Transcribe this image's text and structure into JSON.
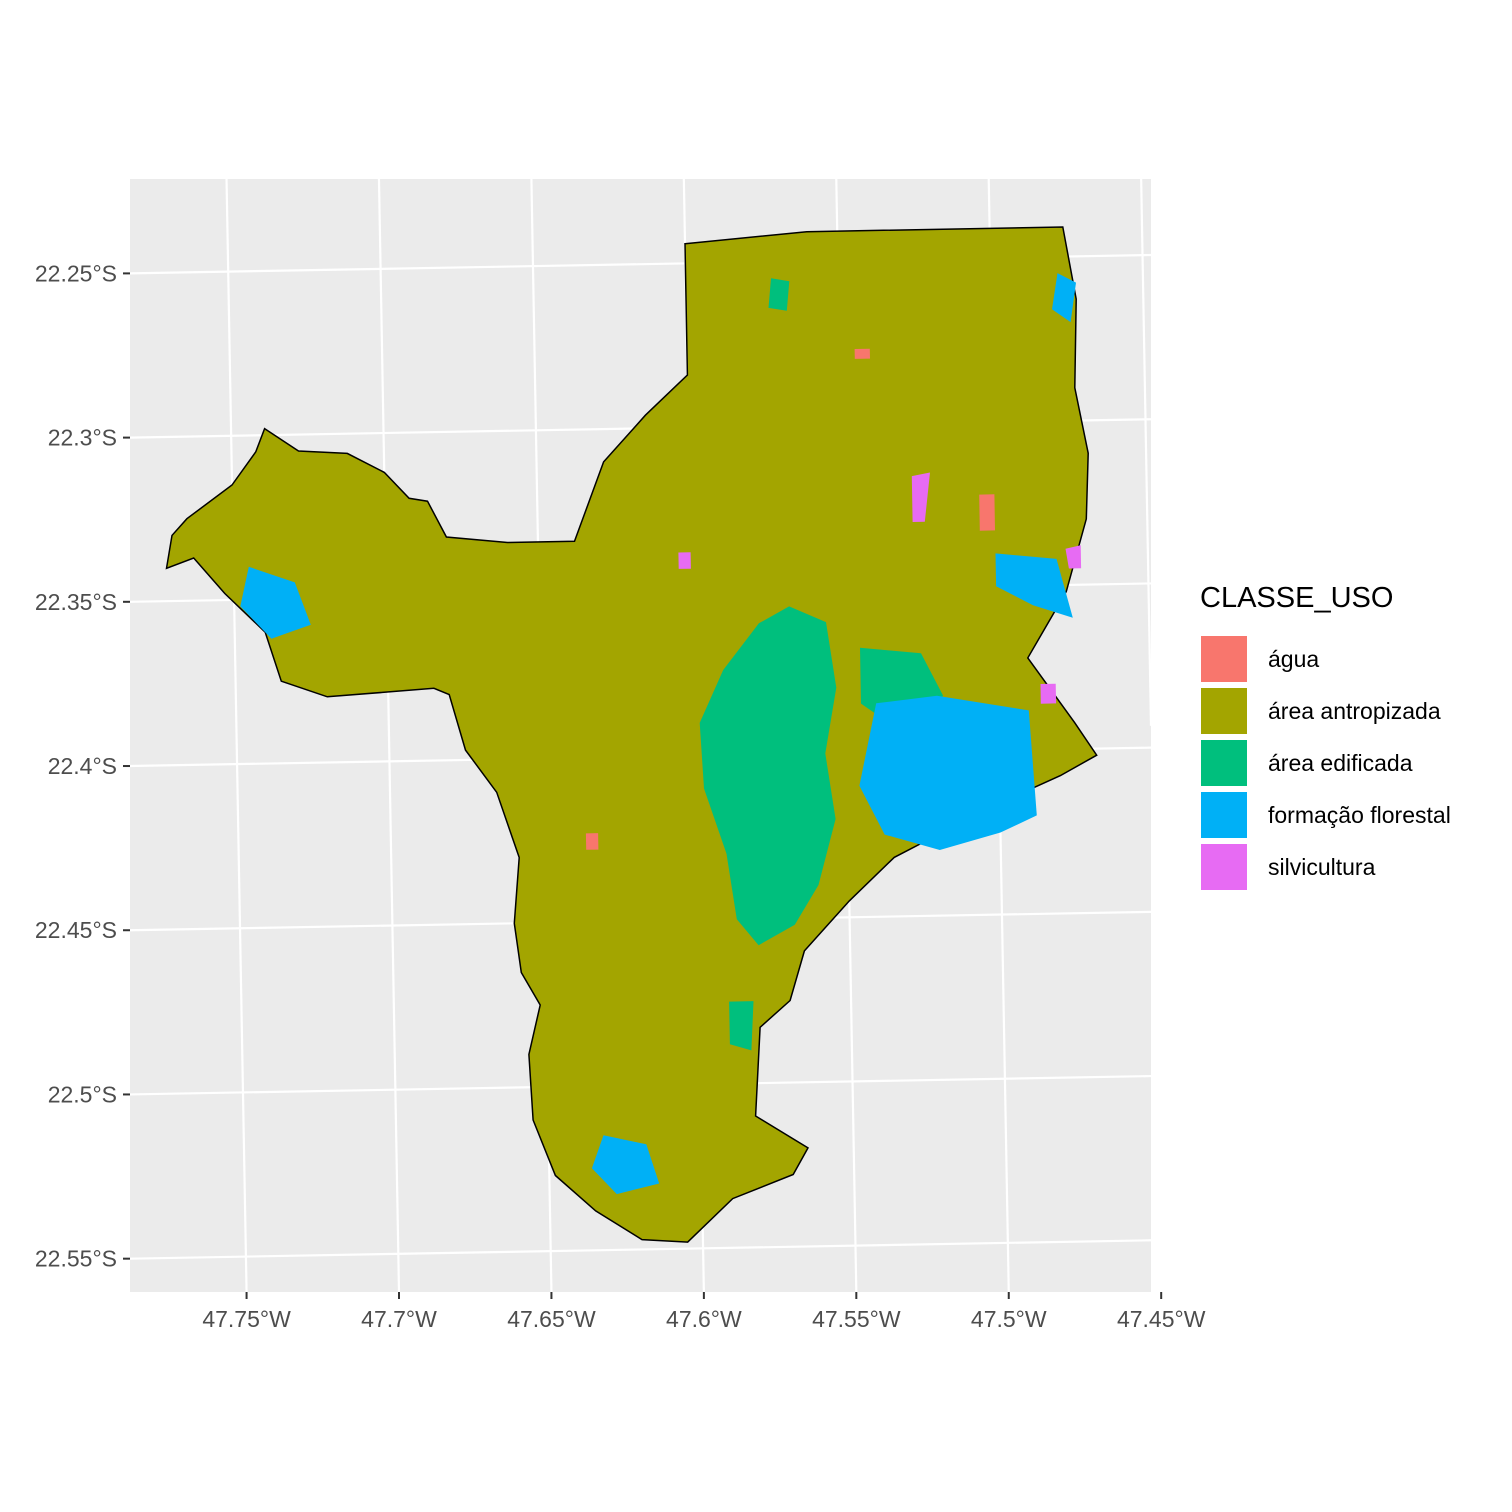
{
  "chart_data": {
    "type": "map",
    "title": "",
    "xlabel": "",
    "ylabel": "",
    "x_ticks": [
      "47.75°W",
      "47.7°W",
      "47.65°W",
      "47.6°W",
      "47.55°W",
      "47.5°W",
      "47.45°W"
    ],
    "y_ticks": [
      "22.25°S",
      "22.3°S",
      "22.35°S",
      "22.4°S",
      "22.45°S",
      "22.5°S",
      "22.55°S"
    ],
    "xlim": [
      -47.785,
      -47.45
    ],
    "ylim": [
      -22.563,
      -22.224
    ],
    "panel_background": "#ebebeb",
    "grid": true,
    "legend": {
      "title": "CLASSE_USO",
      "position": "right",
      "items": [
        {
          "label": "água",
          "color": "#F8766D"
        },
        {
          "label": "área antropizada",
          "color": "#A3A500"
        },
        {
          "label": "área edificada",
          "color": "#00BF7D"
        },
        {
          "label": "formação florestal",
          "color": "#00B0F6"
        },
        {
          "label": "silvicultura",
          "color": "#E76BF3"
        }
      ]
    },
    "regions": [
      {
        "class": "área antropizada",
        "boundary": [
          [
            -47.6,
            -22.244
          ],
          [
            -47.56,
            -22.241
          ],
          [
            -47.476,
            -22.241
          ],
          [
            -47.472,
            -22.263
          ],
          [
            -47.473,
            -22.29
          ],
          [
            -47.469,
            -22.31
          ],
          [
            -47.47,
            -22.33
          ],
          [
            -47.477,
            -22.352
          ],
          [
            -47.49,
            -22.372
          ],
          [
            -47.475,
            -22.392
          ],
          [
            -47.468,
            -22.402
          ],
          [
            -47.48,
            -22.408
          ],
          [
            -47.505,
            -22.418
          ],
          [
            -47.522,
            -22.426
          ],
          [
            -47.535,
            -22.432
          ],
          [
            -47.55,
            -22.445
          ],
          [
            -47.565,
            -22.46
          ],
          [
            -47.57,
            -22.475
          ],
          [
            -47.58,
            -22.483
          ],
          [
            -47.582,
            -22.51
          ],
          [
            -47.565,
            -22.52
          ],
          [
            -47.57,
            -22.528
          ],
          [
            -47.59,
            -22.535
          ],
          [
            -47.605,
            -22.548
          ],
          [
            -47.62,
            -22.547
          ],
          [
            -47.635,
            -22.538
          ],
          [
            -47.648,
            -22.527
          ],
          [
            -47.655,
            -22.51
          ],
          [
            -47.656,
            -22.49
          ],
          [
            -47.652,
            -22.475
          ],
          [
            -47.658,
            -22.465
          ],
          [
            -47.66,
            -22.45
          ],
          [
            -47.658,
            -22.43
          ],
          [
            -47.665,
            -22.41
          ],
          [
            -47.675,
            -22.397
          ],
          [
            -47.68,
            -22.38
          ],
          [
            -47.685,
            -22.378
          ],
          [
            -47.72,
            -22.38
          ],
          [
            -47.735,
            -22.375
          ],
          [
            -47.74,
            -22.36
          ],
          [
            -47.753,
            -22.348
          ],
          [
            -47.763,
            -22.337
          ],
          [
            -47.772,
            -22.34
          ],
          [
            -47.77,
            -22.33
          ],
          [
            -47.765,
            -22.325
          ],
          [
            -47.75,
            -22.315
          ],
          [
            -47.742,
            -22.305
          ],
          [
            -47.739,
            -22.298
          ],
          [
            -47.728,
            -22.305
          ],
          [
            -47.712,
            -22.306
          ],
          [
            -47.7,
            -22.312
          ],
          [
            -47.692,
            -22.32
          ],
          [
            -47.686,
            -22.321
          ],
          [
            -47.68,
            -22.332
          ],
          [
            -47.66,
            -22.334
          ],
          [
            -47.638,
            -22.334
          ],
          [
            -47.628,
            -22.31
          ],
          [
            -47.614,
            -22.296
          ],
          [
            -47.6,
            -22.284
          ]
        ]
      },
      {
        "class": "área edificada",
        "boundary": [
          [
            -47.578,
            -22.36
          ],
          [
            -47.568,
            -22.355
          ],
          [
            -47.556,
            -22.36
          ],
          [
            -47.553,
            -22.38
          ],
          [
            -47.557,
            -22.4
          ],
          [
            -47.554,
            -22.42
          ],
          [
            -47.56,
            -22.44
          ],
          [
            -47.568,
            -22.452
          ],
          [
            -47.58,
            -22.458
          ],
          [
            -47.587,
            -22.45
          ],
          [
            -47.59,
            -22.43
          ],
          [
            -47.597,
            -22.41
          ],
          [
            -47.598,
            -22.39
          ],
          [
            -47.59,
            -22.374
          ]
        ]
      },
      {
        "class": "área edificada",
        "boundary": [
          [
            -47.545,
            -22.368
          ],
          [
            -47.525,
            -22.37
          ],
          [
            -47.518,
            -22.383
          ],
          [
            -47.53,
            -22.395
          ],
          [
            -47.545,
            -22.385
          ]
        ]
      },
      {
        "class": "área edificada",
        "boundary": [
          [
            -47.572,
            -22.255
          ],
          [
            -47.566,
            -22.256
          ],
          [
            -47.567,
            -22.265
          ],
          [
            -47.573,
            -22.264
          ]
        ]
      },
      {
        "class": "área edificada",
        "boundary": [
          [
            -47.59,
            -22.475
          ],
          [
            -47.582,
            -22.475
          ],
          [
            -47.583,
            -22.49
          ],
          [
            -47.59,
            -22.488
          ]
        ]
      },
      {
        "class": "formação florestal",
        "boundary": [
          [
            -47.54,
            -22.385
          ],
          [
            -47.52,
            -22.383
          ],
          [
            -47.49,
            -22.388
          ],
          [
            -47.488,
            -22.42
          ],
          [
            -47.5,
            -22.425
          ],
          [
            -47.52,
            -22.43
          ],
          [
            -47.538,
            -22.425
          ],
          [
            -47.546,
            -22.41
          ]
        ]
      },
      {
        "class": "formação florestal",
        "boundary": [
          [
            -47.5,
            -22.34
          ],
          [
            -47.48,
            -22.342
          ],
          [
            -47.475,
            -22.36
          ],
          [
            -47.488,
            -22.356
          ],
          [
            -47.5,
            -22.35
          ]
        ]
      },
      {
        "class": "formação florestal",
        "boundary": [
          [
            -47.745,
            -22.34
          ],
          [
            -47.73,
            -22.345
          ],
          [
            -47.725,
            -22.358
          ],
          [
            -47.738,
            -22.362
          ],
          [
            -47.748,
            -22.352
          ]
        ]
      },
      {
        "class": "formação florestal",
        "boundary": [
          [
            -47.632,
            -22.515
          ],
          [
            -47.618,
            -22.518
          ],
          [
            -47.614,
            -22.53
          ],
          [
            -47.628,
            -22.533
          ],
          [
            -47.636,
            -22.525
          ]
        ]
      },
      {
        "class": "formação florestal",
        "boundary": [
          [
            -47.478,
            -22.255
          ],
          [
            -47.472,
            -22.258
          ],
          [
            -47.474,
            -22.27
          ],
          [
            -47.48,
            -22.266
          ]
        ]
      },
      {
        "class": "água",
        "boundary": [
          [
            -47.505,
            -22.322
          ],
          [
            -47.5,
            -22.322
          ],
          [
            -47.5,
            -22.333
          ],
          [
            -47.505,
            -22.333
          ]
        ]
      },
      {
        "class": "água",
        "boundary": [
          [
            -47.636,
            -22.423
          ],
          [
            -47.632,
            -22.423
          ],
          [
            -47.632,
            -22.428
          ],
          [
            -47.636,
            -22.428
          ]
        ]
      },
      {
        "class": "água",
        "boundary": [
          [
            -47.545,
            -22.277
          ],
          [
            -47.54,
            -22.277
          ],
          [
            -47.54,
            -22.28
          ],
          [
            -47.545,
            -22.28
          ]
        ]
      },
      {
        "class": "silvicultura",
        "boundary": [
          [
            -47.527,
            -22.316
          ],
          [
            -47.521,
            -22.315
          ],
          [
            -47.523,
            -22.33
          ],
          [
            -47.527,
            -22.33
          ]
        ]
      },
      {
        "class": "silvicultura",
        "boundary": [
          [
            -47.477,
            -22.339
          ],
          [
            -47.472,
            -22.338
          ],
          [
            -47.472,
            -22.345
          ],
          [
            -47.476,
            -22.345
          ]
        ]
      },
      {
        "class": "silvicultura",
        "boundary": [
          [
            -47.486,
            -22.38
          ],
          [
            -47.481,
            -22.38
          ],
          [
            -47.481,
            -22.386
          ],
          [
            -47.486,
            -22.386
          ]
        ]
      },
      {
        "class": "silvicultura",
        "boundary": [
          [
            -47.604,
            -22.338
          ],
          [
            -47.6,
            -22.338
          ],
          [
            -47.6,
            -22.343
          ],
          [
            -47.604,
            -22.343
          ]
        ]
      }
    ]
  }
}
